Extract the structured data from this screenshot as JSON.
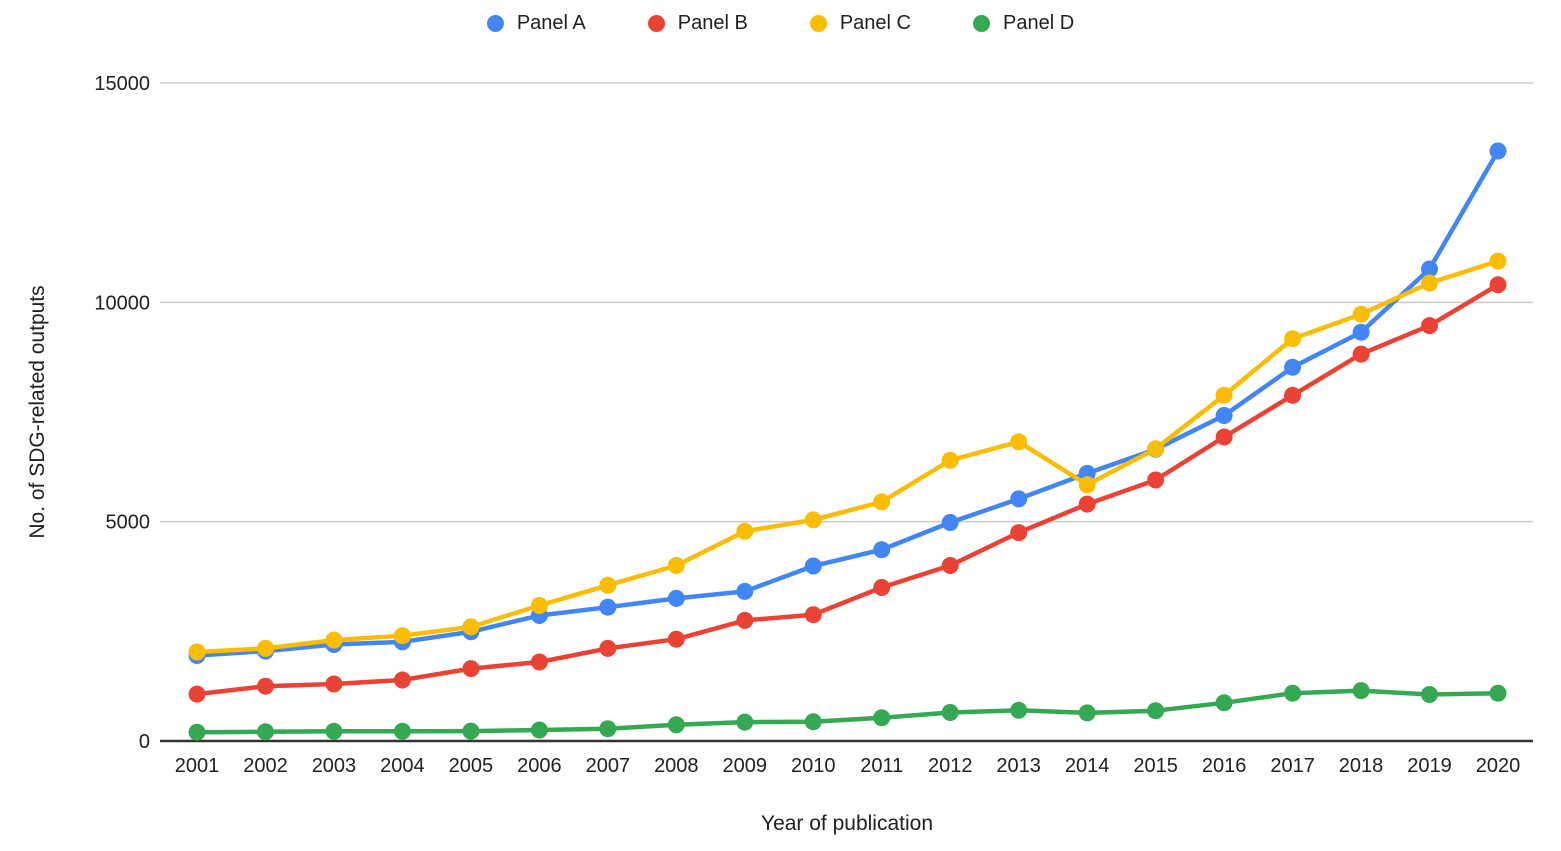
{
  "chart_data": {
    "type": "line",
    "title": "",
    "xlabel": "Year of publication",
    "ylabel": "No. of SDG-related outputs",
    "categories": [
      "2001",
      "2002",
      "2003",
      "2004",
      "2005",
      "2006",
      "2007",
      "2008",
      "2009",
      "2010",
      "2011",
      "2012",
      "2013",
      "2014",
      "2015",
      "2016",
      "2017",
      "2018",
      "2019",
      "2020"
    ],
    "series": [
      {
        "name": "Panel A",
        "color": "#4285F4",
        "values": [
          1950,
          2050,
          2200,
          2260,
          2490,
          2860,
          3050,
          3250,
          3410,
          3990,
          4360,
          4980,
          5520,
          6100,
          6650,
          7420,
          8520,
          9320,
          10760,
          13450
        ]
      },
      {
        "name": "Panel B",
        "color": "#EA4335",
        "values": [
          1070,
          1250,
          1300,
          1390,
          1650,
          1800,
          2110,
          2320,
          2750,
          2880,
          3500,
          4000,
          4750,
          5400,
          5950,
          6930,
          7880,
          8820,
          9470,
          10400
        ]
      },
      {
        "name": "Panel C",
        "color": "#FBBC04",
        "values": [
          2030,
          2110,
          2300,
          2400,
          2600,
          3090,
          3550,
          4000,
          4780,
          5040,
          5450,
          6400,
          6820,
          5840,
          6660,
          7880,
          9170,
          9730,
          10440,
          10940
        ]
      },
      {
        "name": "Panel D",
        "color": "#34A853",
        "values": [
          200,
          210,
          220,
          220,
          225,
          250,
          280,
          370,
          430,
          440,
          530,
          650,
          700,
          640,
          690,
          870,
          1090,
          1150,
          1060,
          1090
        ]
      }
    ],
    "ylim": [
      0,
      15000
    ],
    "yticks": [
      0,
      5000,
      10000,
      15000
    ],
    "grid": true,
    "legend_position": "top",
    "colors": {
      "gridline": "#cccccc",
      "axis_line": "#333333",
      "text": "#202124",
      "background": "#ffffff"
    }
  }
}
